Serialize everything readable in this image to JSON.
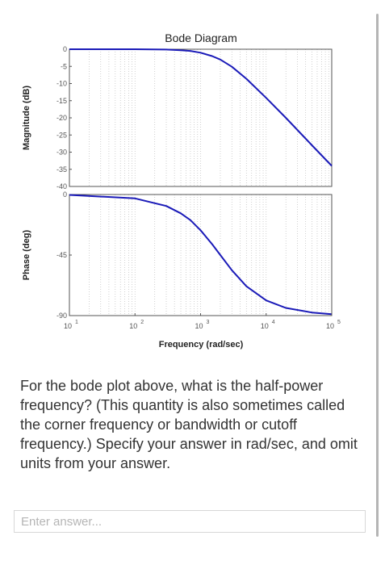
{
  "chart_data": {
    "type": "line",
    "title": "Bode Diagram",
    "xlabel": "Frequency  (rad/sec)",
    "xscale": "log",
    "xlim": [
      10,
      100000
    ],
    "x_ticks": [
      {
        "base": "10",
        "exp": "1"
      },
      {
        "base": "10",
        "exp": "2"
      },
      {
        "base": "10",
        "exp": "3"
      },
      {
        "base": "10",
        "exp": "4"
      },
      {
        "base": "10",
        "exp": "5"
      }
    ],
    "grid": true,
    "panels": [
      {
        "ylabel": "Magnitude (dB)",
        "ylim": [
          -40,
          0
        ],
        "yticks": [
          "0",
          "-5",
          "-10",
          "-15",
          "-20",
          "-25",
          "-30",
          "-35",
          "-40"
        ],
        "series": [
          {
            "x": [
              10,
              100,
              300,
              500,
              700,
              1000,
              1500,
              2000,
              3000,
              5000,
              10000,
              20000,
              50000,
              100000
            ],
            "y": [
              0,
              -0.01,
              -0.1,
              -0.3,
              -0.5,
              -1.0,
              -2.0,
              -3.0,
              -5.1,
              -8.6,
              -14.2,
              -20.0,
              -28.0,
              -34.0
            ]
          }
        ]
      },
      {
        "ylabel": "Phase (deg)",
        "ylim": [
          -90,
          0
        ],
        "yticks": [
          "0",
          "-45",
          "-90"
        ],
        "series": [
          {
            "x": [
              10,
              100,
              300,
              500,
              700,
              1000,
              1500,
              2000,
              3000,
              5000,
              10000,
              20000,
              50000,
              100000
            ],
            "y": [
              -0.3,
              -2.9,
              -8.5,
              -14,
              -19,
              -26.6,
              -36.9,
              -45.0,
              -56.3,
              -68.2,
              -78.7,
              -84.3,
              -87.7,
              -88.9
            ]
          }
        ]
      }
    ]
  },
  "question": {
    "text": "For the bode plot above, what is the half-power frequency? (This quantity is also sometimes called the corner frequency or bandwidth or cutoff frequency.) Specify your answer in rad/sec, and omit units from your answer."
  },
  "answer": {
    "value": "",
    "placeholder": "Enter answer..."
  },
  "colors": {
    "curve": "#1a1ab8",
    "axis": "#555555",
    "grid": "#bdbdbd",
    "text": "#333333"
  }
}
